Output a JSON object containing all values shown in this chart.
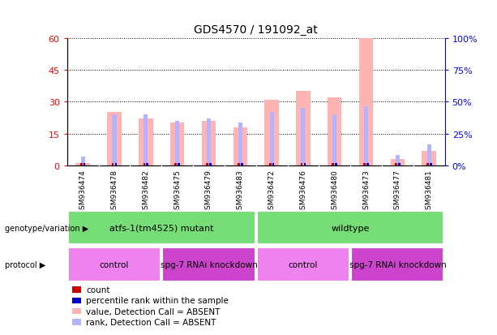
{
  "title": "GDS4570 / 191092_at",
  "samples": [
    "GSM936474",
    "GSM936478",
    "GSM936482",
    "GSM936475",
    "GSM936479",
    "GSM936483",
    "GSM936472",
    "GSM936476",
    "GSM936480",
    "GSM936473",
    "GSM936477",
    "GSM936481"
  ],
  "ylim_left": [
    0,
    60
  ],
  "ylim_right": [
    0,
    100
  ],
  "yticks_left": [
    0,
    15,
    30,
    45,
    60
  ],
  "yticks_right": [
    0,
    25,
    50,
    75,
    100
  ],
  "yticklabels_left": [
    "0",
    "15",
    "30",
    "45",
    "60"
  ],
  "yticklabels_right": [
    "0%",
    "25%",
    "50%",
    "75%",
    "100%"
  ],
  "color_count": "#cc0000",
  "color_percentile": "#0000cc",
  "color_absent_count": "#ffb3b3",
  "color_absent_rank": "#b3b3ff",
  "bg_color": "#ffffff",
  "absent_count_heights": [
    1,
    25,
    22,
    20,
    21,
    18,
    31,
    35,
    32,
    60,
    3,
    7
  ],
  "absent_rank_heights": [
    4,
    24,
    24,
    21,
    22,
    20,
    25,
    27,
    24,
    28,
    5,
    10
  ],
  "is_absent_count": [
    true,
    true,
    true,
    true,
    true,
    true,
    true,
    true,
    true,
    true,
    true,
    true
  ],
  "is_absent_rank": [
    true,
    true,
    true,
    true,
    true,
    true,
    true,
    true,
    true,
    true,
    true,
    true
  ],
  "small_count_heights": [
    1,
    1,
    1,
    1,
    1,
    1,
    1,
    1,
    1,
    1,
    1,
    1
  ],
  "small_rank_heights": [
    1,
    1,
    1,
    1,
    1,
    1,
    1,
    1,
    1,
    1,
    1,
    1
  ],
  "genotype_groups": [
    {
      "label": "atfs-1(tm4525) mutant",
      "start": 0,
      "end": 6,
      "color": "#77dd77"
    },
    {
      "label": "wildtype",
      "start": 6,
      "end": 12,
      "color": "#77dd77"
    }
  ],
  "protocol_groups": [
    {
      "label": "control",
      "start": 0,
      "end": 3,
      "color": "#ee82ee"
    },
    {
      "label": "spg-7 RNAi knockdown",
      "start": 3,
      "end": 6,
      "color": "#cc44cc"
    },
    {
      "label": "control",
      "start": 6,
      "end": 9,
      "color": "#ee82ee"
    },
    {
      "label": "spg-7 RNAi knockdown",
      "start": 9,
      "end": 12,
      "color": "#cc44cc"
    }
  ],
  "legend_items": [
    {
      "label": "count",
      "color": "#cc0000"
    },
    {
      "label": "percentile rank within the sample",
      "color": "#0000cc"
    },
    {
      "label": "value, Detection Call = ABSENT",
      "color": "#ffb3b3"
    },
    {
      "label": "rank, Detection Call = ABSENT",
      "color": "#b3b3ff"
    }
  ]
}
